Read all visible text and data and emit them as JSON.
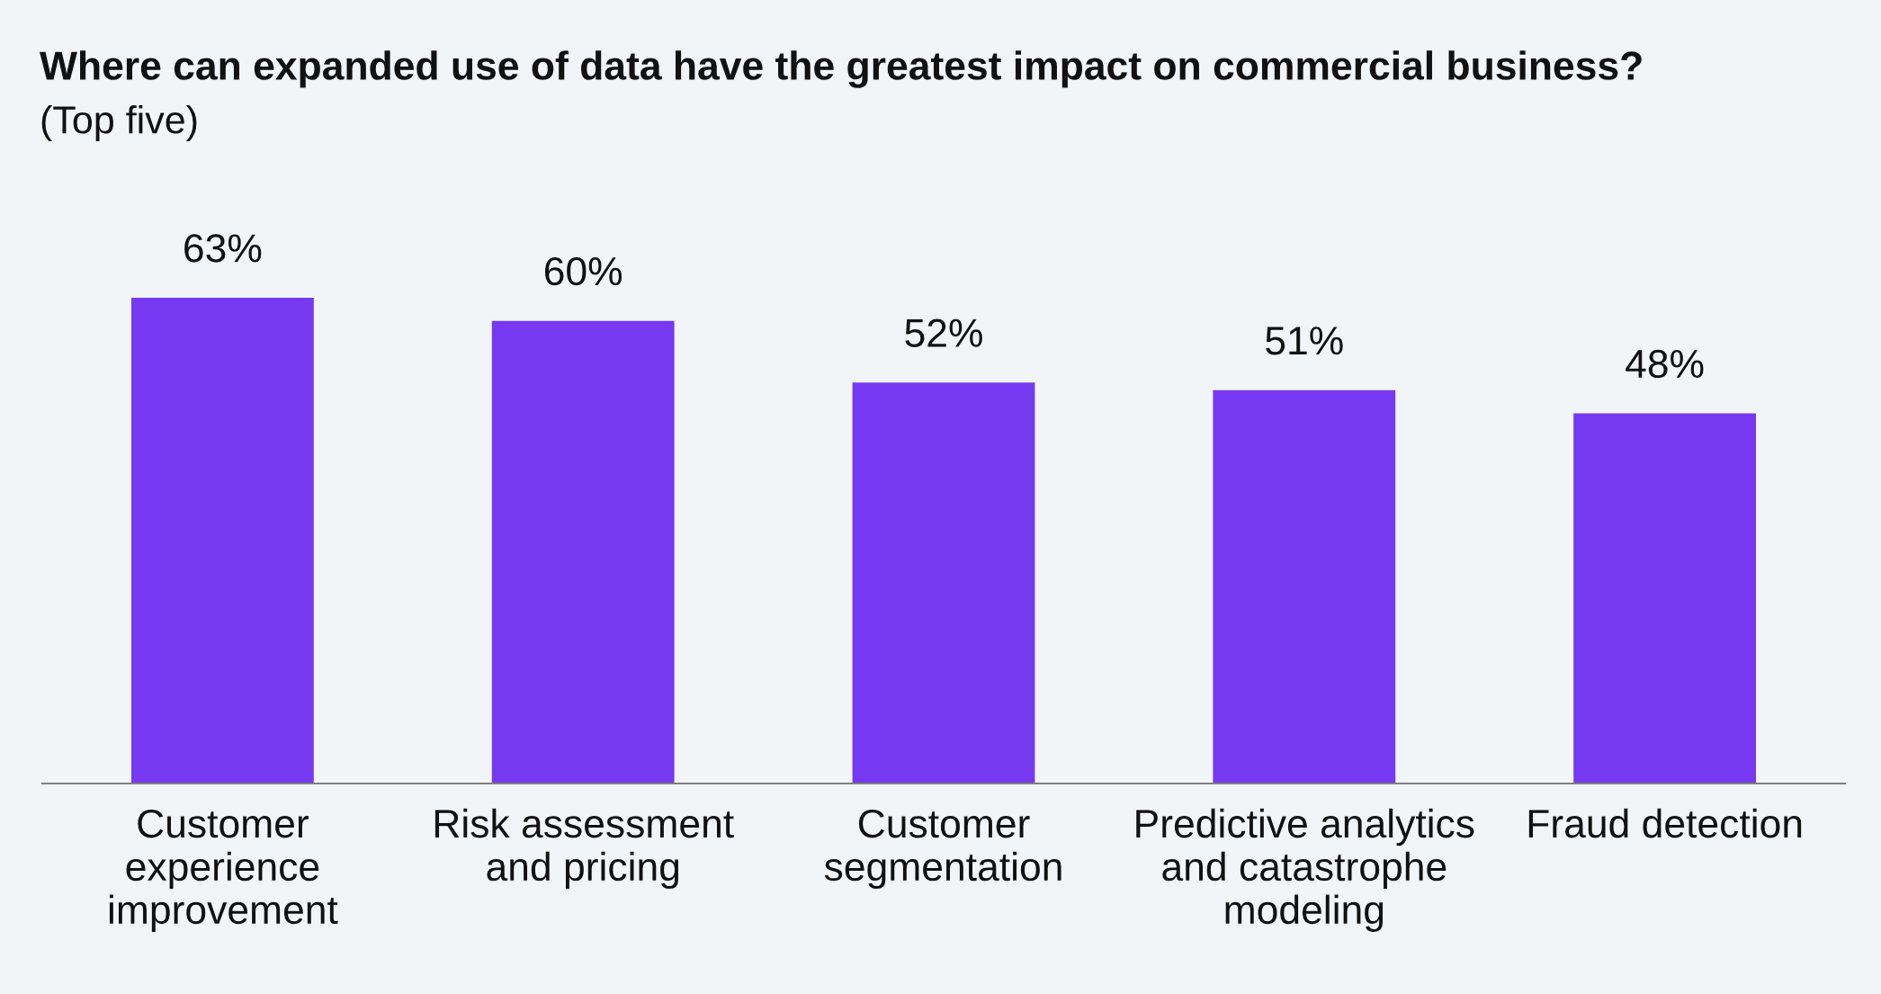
{
  "chart_data": {
    "type": "bar",
    "title": "Where can expanded use of data have the greatest impact on commercial business?",
    "subtitle": "(Top five)",
    "categories": [
      "Customer\nexperience\nimprovement",
      "Risk assessment\nand pricing",
      "Customer\nsegmentation",
      "Predictive analytics\nand catastrophe\nmodeling",
      "Fraud detection"
    ],
    "values": [
      63,
      60,
      52,
      51,
      48
    ],
    "color": "#7638f0",
    "value_labels": [
      "63%",
      "60%",
      "52%",
      "51%",
      "48%"
    ],
    "tick_labels": "x"
  }
}
